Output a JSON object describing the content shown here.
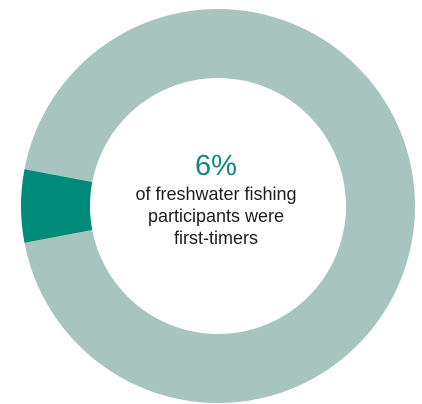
{
  "chart_data": {
    "type": "pie",
    "variant": "donut",
    "values": [
      6,
      94
    ],
    "colors": [
      "#008a7a",
      "#a8c4bf"
    ],
    "center_value": "6%",
    "center_caption": "of freshwater fishing participants were first-timers",
    "center_caption_lines": [
      "of freshwater fishing",
      "participants were",
      "first-timers"
    ]
  }
}
